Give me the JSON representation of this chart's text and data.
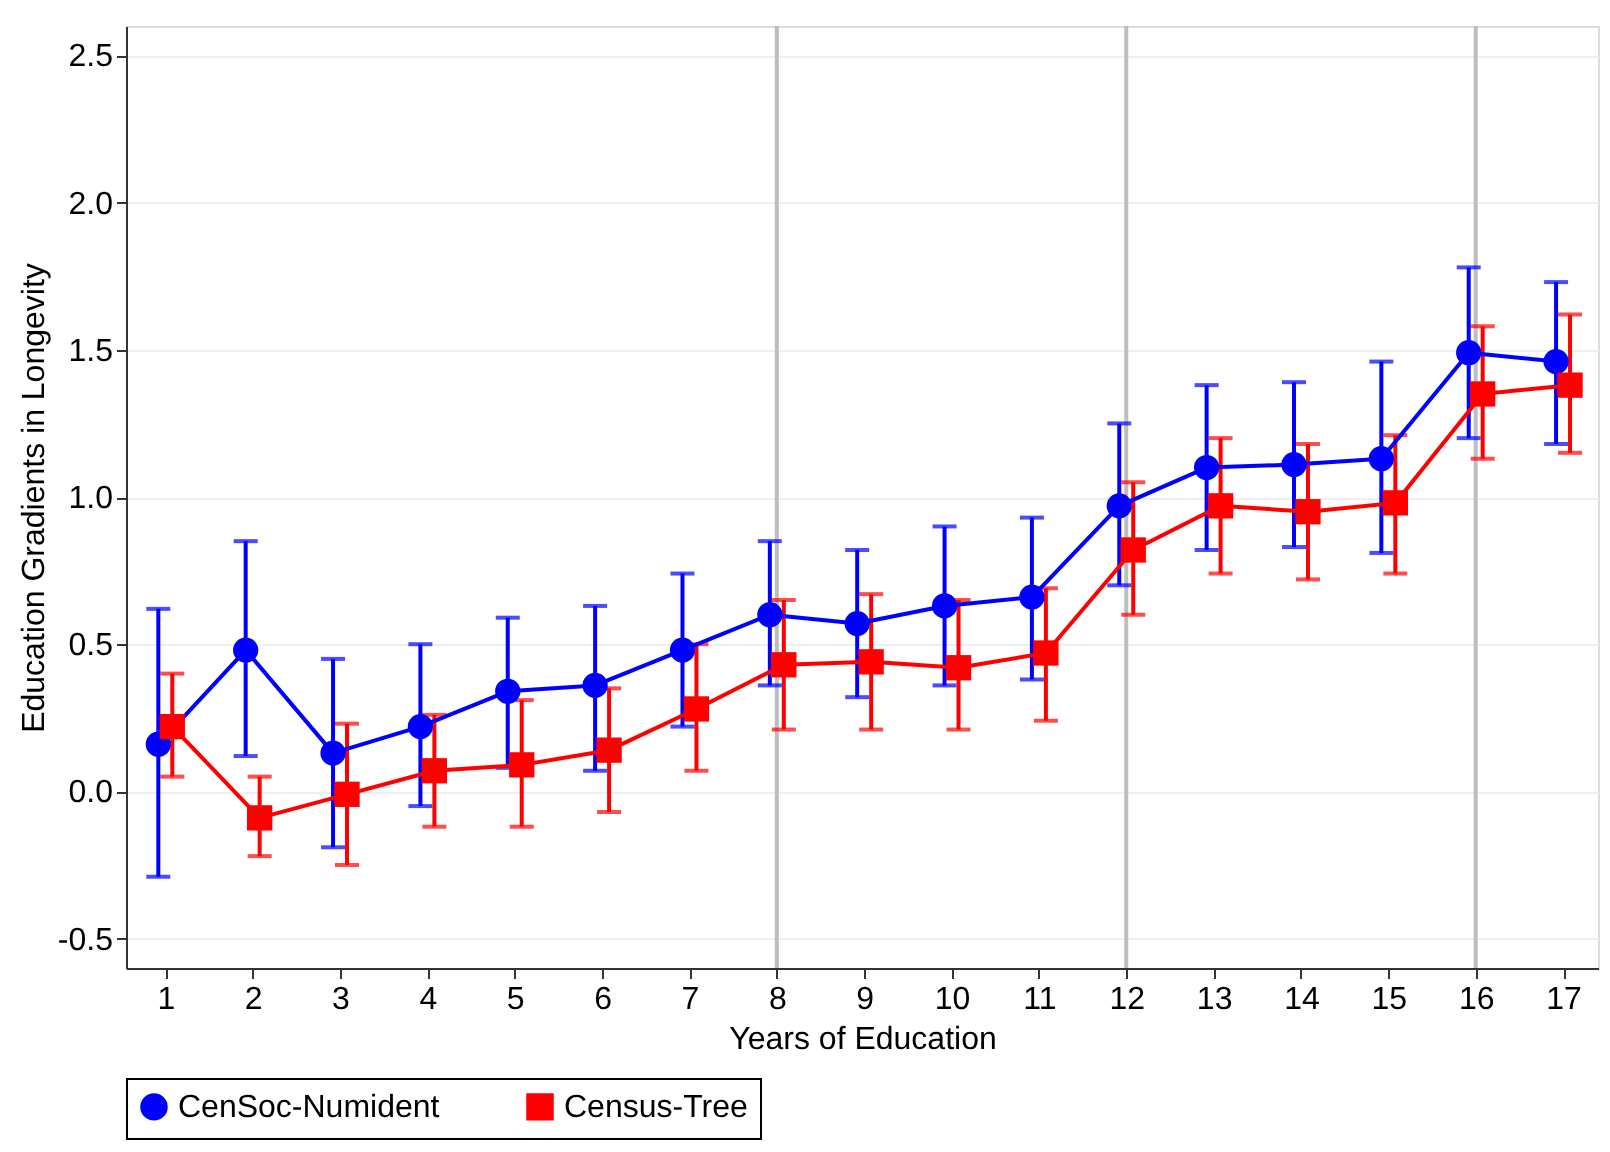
{
  "chart_data": {
    "type": "line",
    "xlabel": "Years of Education",
    "ylabel": "Education Gradients in Longevity",
    "xlim": [
      0.55,
      17.4
    ],
    "xticks": [
      1,
      2,
      3,
      4,
      5,
      6,
      7,
      8,
      9,
      10,
      11,
      12,
      13,
      14,
      15,
      16,
      17
    ],
    "ylim": [
      -0.6,
      2.6
    ],
    "yticks": [
      -0.5,
      {
        "value": 0,
        "label": "0.0"
      },
      0.5,
      {
        "value": 1,
        "label": "1.0"
      },
      1.5,
      {
        "value": 2,
        "label": "2.0"
      },
      2.5
    ],
    "grid": "y",
    "legend": "bottom",
    "ref_lines": [
      {
        "axis": "x",
        "value": 8,
        "color": "#bdbdbd"
      },
      {
        "axis": "x",
        "value": 12,
        "color": "#bdbdbd"
      },
      {
        "axis": "x",
        "value": 16,
        "color": "#bdbdbd"
      }
    ],
    "series": [
      {
        "name": "CenSoc-Numident",
        "color": "#0000ff",
        "marker": "circle",
        "x": [
          0.92,
          1.92,
          2.92,
          3.92,
          4.92,
          5.92,
          6.92,
          7.92,
          8.92,
          9.92,
          10.92,
          11.92,
          12.92,
          13.92,
          14.92,
          15.92,
          16.92
        ],
        "values": [
          0.16,
          0.48,
          0.13,
          0.22,
          0.34,
          0.36,
          0.48,
          0.6,
          0.57,
          0.63,
          0.66,
          0.97,
          1.1,
          1.11,
          1.13,
          1.49,
          1.46
        ],
        "errors": [
          [
            -0.29,
            0.62
          ],
          [
            0.12,
            0.85
          ],
          [
            -0.19,
            0.45
          ],
          [
            -0.05,
            0.5
          ],
          [
            0.08,
            0.59
          ],
          [
            0.07,
            0.63
          ],
          [
            0.22,
            0.74
          ],
          [
            0.36,
            0.85
          ],
          [
            0.32,
            0.82
          ],
          [
            0.36,
            0.9
          ],
          [
            0.38,
            0.93
          ],
          [
            0.7,
            1.25
          ],
          [
            0.82,
            1.38
          ],
          [
            0.83,
            1.39
          ],
          [
            0.81,
            1.46
          ],
          [
            1.2,
            1.78
          ],
          [
            1.18,
            1.73
          ]
        ]
      },
      {
        "name": "Census-Tree",
        "color": "#ff0000",
        "marker": "square",
        "x": [
          1.08,
          2.08,
          3.08,
          4.08,
          5.08,
          6.08,
          7.08,
          8.08,
          9.08,
          10.08,
          11.08,
          12.08,
          13.08,
          14.08,
          15.08,
          16.08,
          17.08
        ],
        "values": [
          0.22,
          -0.09,
          -0.01,
          0.07,
          0.09,
          0.14,
          0.28,
          0.43,
          0.44,
          0.42,
          0.47,
          0.82,
          0.97,
          0.95,
          0.98,
          1.35,
          1.38
        ],
        "errors": [
          [
            0.05,
            0.4
          ],
          [
            -0.22,
            0.05
          ],
          [
            -0.25,
            0.23
          ],
          [
            -0.12,
            0.26
          ],
          [
            -0.12,
            0.31
          ],
          [
            -0.07,
            0.35
          ],
          [
            0.07,
            0.5
          ],
          [
            0.21,
            0.65
          ],
          [
            0.21,
            0.67
          ],
          [
            0.21,
            0.65
          ],
          [
            0.24,
            0.69
          ],
          [
            0.6,
            1.05
          ],
          [
            0.74,
            1.2
          ],
          [
            0.72,
            1.18
          ],
          [
            0.74,
            1.21
          ],
          [
            1.13,
            1.58
          ],
          [
            1.15,
            1.62
          ]
        ]
      }
    ]
  }
}
